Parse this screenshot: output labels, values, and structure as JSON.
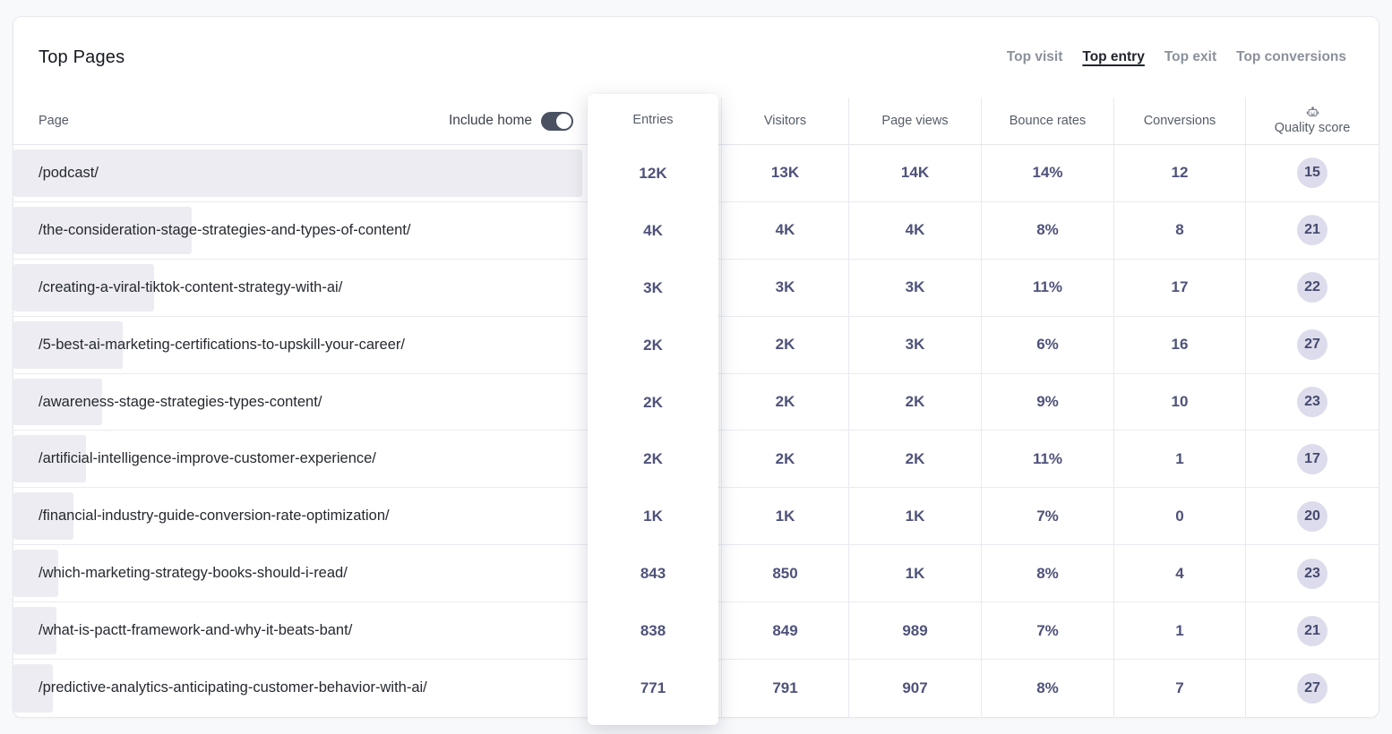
{
  "card": {
    "title": "Top Pages"
  },
  "tabs": [
    {
      "label": "Top visit",
      "active": false
    },
    {
      "label": "Top entry",
      "active": true
    },
    {
      "label": "Top exit",
      "active": false
    },
    {
      "label": "Top conversions",
      "active": false
    }
  ],
  "table": {
    "page_header": "Page",
    "include_home_label": "Include home",
    "include_home_on": true,
    "columns": [
      "Entries",
      "Visitors",
      "Page views",
      "Bounce rates",
      "Conversions",
      "Quality score"
    ],
    "rows": [
      {
        "page": "/podcast/",
        "bar_pct": 100,
        "entries": "12K",
        "visitors": "13K",
        "page_views": "14K",
        "bounce_rate": "14%",
        "conversions": "12",
        "quality_score": "15"
      },
      {
        "page": "/the-consideration-stage-strategies-and-types-of-content/",
        "bar_pct": 31,
        "entries": "4K",
        "visitors": "4K",
        "page_views": "4K",
        "bounce_rate": "8%",
        "conversions": "8",
        "quality_score": "21"
      },
      {
        "page": "/creating-a-viral-tiktok-content-strategy-with-ai/",
        "bar_pct": 24.5,
        "entries": "3K",
        "visitors": "3K",
        "page_views": "3K",
        "bounce_rate": "11%",
        "conversions": "17",
        "quality_score": "22"
      },
      {
        "page": "/5-best-ai-marketing-certifications-to-upskill-your-career/",
        "bar_pct": 19,
        "entries": "2K",
        "visitors": "2K",
        "page_views": "3K",
        "bounce_rate": "6%",
        "conversions": "16",
        "quality_score": "27"
      },
      {
        "page": "/awareness-stage-strategies-types-content/",
        "bar_pct": 15.5,
        "entries": "2K",
        "visitors": "2K",
        "page_views": "2K",
        "bounce_rate": "9%",
        "conversions": "10",
        "quality_score": "23"
      },
      {
        "page": "/artificial-intelligence-improve-customer-experience/",
        "bar_pct": 12.7,
        "entries": "2K",
        "visitors": "2K",
        "page_views": "2K",
        "bounce_rate": "11%",
        "conversions": "1",
        "quality_score": "17"
      },
      {
        "page": "/financial-industry-guide-conversion-rate-optimization/",
        "bar_pct": 10.5,
        "entries": "1K",
        "visitors": "1K",
        "page_views": "1K",
        "bounce_rate": "7%",
        "conversions": "0",
        "quality_score": "20"
      },
      {
        "page": "/which-marketing-strategy-books-should-i-read/",
        "bar_pct": 7.8,
        "entries": "843",
        "visitors": "850",
        "page_views": "1K",
        "bounce_rate": "8%",
        "conversions": "4",
        "quality_score": "23"
      },
      {
        "page": "/what-is-pactt-framework-and-why-it-beats-bant/",
        "bar_pct": 7.5,
        "entries": "838",
        "visitors": "849",
        "page_views": "989",
        "bounce_rate": "7%",
        "conversions": "1",
        "quality_score": "21"
      },
      {
        "page": "/predictive-analytics-anticipating-customer-behavior-with-ai/",
        "bar_pct": 6.9,
        "entries": "771",
        "visitors": "791",
        "page_views": "907",
        "bounce_rate": "8%",
        "conversions": "7",
        "quality_score": "27"
      }
    ]
  },
  "icons": {
    "quality_header_icon": "robot-icon"
  },
  "colors": {
    "value_text": "#4e527a",
    "bar_fill": "#ececf2",
    "badge_bg": "#dcdcec",
    "toggle_on": "#4a5160",
    "active_tab": "#20242c",
    "inactive_tab": "#8b919c"
  }
}
